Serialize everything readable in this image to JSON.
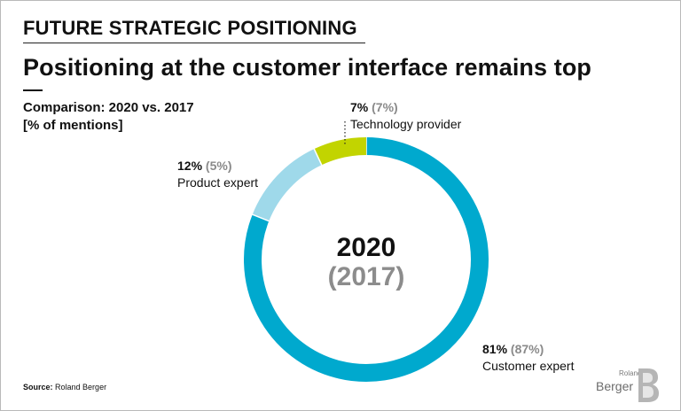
{
  "header": {
    "section": "FUTURE STRATEGIC POSITIONING",
    "headline": "Positioning at the customer interface remains top",
    "subtitle_line1": "Comparison: 2020 vs. 2017",
    "subtitle_line2": "[% of mentions]"
  },
  "center": {
    "year_current": "2020",
    "year_previous": "(2017)"
  },
  "chart_data": {
    "type": "pie",
    "variant": "donut",
    "slices": [
      {
        "name": "Customer expert",
        "value": 81,
        "previous": 87,
        "label_value": "81%",
        "label_previous": "(87%)",
        "color": "#00a9ce"
      },
      {
        "name": "Product expert",
        "value": 12,
        "previous": 5,
        "label_value": "12%",
        "label_previous": "(5%)",
        "color": "#9fd9ea"
      },
      {
        "name": "Technology provider",
        "value": 7,
        "previous": 7,
        "label_value": "7%",
        "label_previous": "(7%)",
        "color": "#c2d400"
      }
    ]
  },
  "footer": {
    "source_label": "Source:",
    "source_value": "Roland Berger"
  },
  "logo": {
    "small": "Roland",
    "big": "Berger",
    "color": "#6c6c6c"
  }
}
